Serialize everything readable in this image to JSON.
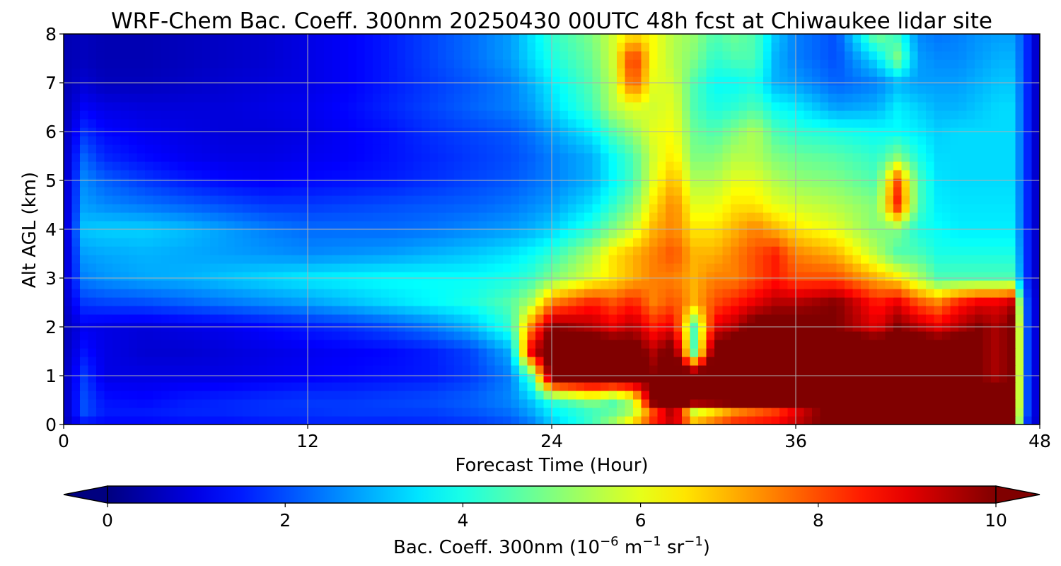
{
  "chart_data": {
    "type": "heatmap",
    "title": "WRF-Chem Bac. Coeff. 300nm  20250430 00UTC 48h fcst at Chiwaukee lidar site",
    "xlabel": "Forecast Time (Hour)",
    "ylabel": "Alt AGL (km)",
    "xlim": [
      0,
      48
    ],
    "ylim": [
      0,
      8
    ],
    "xticks": [
      0,
      12,
      24,
      36,
      48
    ],
    "yticks": [
      0,
      1,
      2,
      3,
      4,
      5,
      6,
      7,
      8
    ],
    "grid": true,
    "colormap": "jet",
    "colorbar": {
      "label_main": "Bac. Coeff. 300nm  (10",
      "label_exp1": "−6",
      "label_mid": " m",
      "label_exp2": "−1",
      "label_mid2": " sr",
      "label_exp3": "−1",
      "label_end": ")",
      "ticks": [
        0,
        2,
        4,
        6,
        8,
        10
      ],
      "range": [
        0,
        10
      ],
      "extend": "both",
      "orientation": "horizontal",
      "placement": "bottom"
    },
    "x": [
      0,
      1,
      2,
      4,
      6,
      8,
      10,
      12,
      14,
      16,
      18,
      20,
      22,
      23,
      24,
      26,
      27,
      28,
      29,
      30,
      31,
      32,
      33,
      34,
      35,
      36,
      38,
      40,
      41,
      42,
      43,
      44,
      45,
      46,
      46.7,
      47.2,
      48
    ],
    "y": [
      0,
      0.2,
      0.5,
      1,
      1.5,
      2,
      2.5,
      3,
      3.5,
      4,
      4.5,
      5,
      5.5,
      6,
      6.5,
      7,
      7.5,
      8
    ],
    "z_rows_per_altitude": [
      [
        0.5,
        1.2,
        1.2,
        1.2,
        1.3,
        1.3,
        1.4,
        1.5,
        1.5,
        1.5,
        1.6,
        1.7,
        2.0,
        2.4,
        3.2,
        4.5,
        5.5,
        7.0,
        9.0,
        9.5,
        8.5,
        9.0,
        9.5,
        9.5,
        9.5,
        9.8,
        10.5,
        11.0,
        11.0,
        11.0,
        11.0,
        10.5,
        10.5,
        10.5,
        10.0,
        2.0,
        0.4
      ],
      [
        0.5,
        2.0,
        1.5,
        1.5,
        1.6,
        1.6,
        1.7,
        1.7,
        1.8,
        1.8,
        1.8,
        2.0,
        2.3,
        2.8,
        3.5,
        4.2,
        4.8,
        5.5,
        7.5,
        9.5,
        4.5,
        5.5,
        6.5,
        7.0,
        7.5,
        8.5,
        10.5,
        11.0,
        11.0,
        11.0,
        11.0,
        10.5,
        10.5,
        10.5,
        10.0,
        2.5,
        0.4
      ],
      [
        0.5,
        2.0,
        1.4,
        1.3,
        1.5,
        1.6,
        1.7,
        1.8,
        1.8,
        1.9,
        2.0,
        2.2,
        2.6,
        3.2,
        4.2,
        5.2,
        4.5,
        5.5,
        10.5,
        11.0,
        11.0,
        11.0,
        11.0,
        11.0,
        11.0,
        11.0,
        11.0,
        10.0,
        11.0,
        11.0,
        11.0,
        11.0,
        10.5,
        10.5,
        10.5,
        2.5,
        0.4
      ],
      [
        0.5,
        1.8,
        1.0,
        1.0,
        1.0,
        1.0,
        1.1,
        1.2,
        1.3,
        1.4,
        1.5,
        1.8,
        2.5,
        4.5,
        10.5,
        11.0,
        11.0,
        11.0,
        10.0,
        11.0,
        11.0,
        11.0,
        11.0,
        11.0,
        11.0,
        11.0,
        11.0,
        11.0,
        11.0,
        11.0,
        11.0,
        11.0,
        10.0,
        9.5,
        10.5,
        2.5,
        0.4
      ],
      [
        0.5,
        1.4,
        1.0,
        0.8,
        0.8,
        0.9,
        1.0,
        1.1,
        1.2,
        1.3,
        1.5,
        1.9,
        3.0,
        9.0,
        11.0,
        11.0,
        11.0,
        10.5,
        9.5,
        10.5,
        4.5,
        10.5,
        11.0,
        11.0,
        11.0,
        11.0,
        11.0,
        11.0,
        11.0,
        11.0,
        11.0,
        11.0,
        10.0,
        9.5,
        10.5,
        2.5,
        0.4
      ],
      [
        0.5,
        1.1,
        1.0,
        0.9,
        1.0,
        1.1,
        1.3,
        1.5,
        1.7,
        2.0,
        2.4,
        3.0,
        4.2,
        7.5,
        10.0,
        9.5,
        9.0,
        9.5,
        8.5,
        9.0,
        4.5,
        9.0,
        9.5,
        10.5,
        10.5,
        10.5,
        10.0,
        9.0,
        10.0,
        9.5,
        9.0,
        9.5,
        10.0,
        9.5,
        10.5,
        2.5,
        0.4
      ],
      [
        0.6,
        1.8,
        1.9,
        2.0,
        2.2,
        2.4,
        2.6,
        2.8,
        3.1,
        3.4,
        3.7,
        4.0,
        4.6,
        5.5,
        7.5,
        8.5,
        8.0,
        8.5,
        7.5,
        8.0,
        7.0,
        8.0,
        8.5,
        9.0,
        9.5,
        9.5,
        10.0,
        8.5,
        9.0,
        8.0,
        7.5,
        8.5,
        9.0,
        9.0,
        9.5,
        2.5,
        0.4
      ],
      [
        0.6,
        2.5,
        2.7,
        2.9,
        3.0,
        3.2,
        3.4,
        3.6,
        3.7,
        3.8,
        3.8,
        3.8,
        4.0,
        4.3,
        5.0,
        6.0,
        6.5,
        7.0,
        7.5,
        7.5,
        7.0,
        7.5,
        7.5,
        8.0,
        8.5,
        8.0,
        8.0,
        7.0,
        6.5,
        5.5,
        4.5,
        4.5,
        4.5,
        4.5,
        4.5,
        2.0,
        0.4
      ],
      [
        0.5,
        2.8,
        2.9,
        3.0,
        2.9,
        2.8,
        2.7,
        2.6,
        2.7,
        2.8,
        3.0,
        3.2,
        3.5,
        3.8,
        4.2,
        5.5,
        6.5,
        7.0,
        7.5,
        8.0,
        7.0,
        7.0,
        7.5,
        8.0,
        8.5,
        7.5,
        7.0,
        5.5,
        4.5,
        4.5,
        4.0,
        4.0,
        4.0,
        4.0,
        4.0,
        2.0,
        0.4
      ],
      [
        0.5,
        3.2,
        3.3,
        3.3,
        3.1,
        2.8,
        2.5,
        2.3,
        2.3,
        2.3,
        2.4,
        2.6,
        2.8,
        3.0,
        3.3,
        4.2,
        5.0,
        5.8,
        7.0,
        7.5,
        6.5,
        6.5,
        7.0,
        7.5,
        7.0,
        6.5,
        6.0,
        5.0,
        5.0,
        4.0,
        3.8,
        3.6,
        3.6,
        3.6,
        3.6,
        2.0,
        0.4
      ],
      [
        0.5,
        2.8,
        2.6,
        2.4,
        2.2,
        2.0,
        1.8,
        1.8,
        1.9,
        2.0,
        2.1,
        2.2,
        2.4,
        2.6,
        2.8,
        3.5,
        4.2,
        5.0,
        6.5,
        7.5,
        6.0,
        6.0,
        6.5,
        6.5,
        6.0,
        5.8,
        5.5,
        5.0,
        8.5,
        4.5,
        3.6,
        3.5,
        3.5,
        3.5,
        3.5,
        2.0,
        0.4
      ],
      [
        0.5,
        2.6,
        2.2,
        1.8,
        1.5,
        1.3,
        1.2,
        1.3,
        1.4,
        1.5,
        1.7,
        1.9,
        2.1,
        2.3,
        2.5,
        3.0,
        3.7,
        4.4,
        6.0,
        7.0,
        5.5,
        5.5,
        6.0,
        6.0,
        5.5,
        5.2,
        5.0,
        4.5,
        8.0,
        4.5,
        3.5,
        3.4,
        3.4,
        3.4,
        3.4,
        2.0,
        0.4
      ],
      [
        0.5,
        2.2,
        1.6,
        1.3,
        1.1,
        1.0,
        1.0,
        1.1,
        1.2,
        1.4,
        1.6,
        1.8,
        2.0,
        2.2,
        2.5,
        3.0,
        3.8,
        4.5,
        5.8,
        6.5,
        5.0,
        5.0,
        5.5,
        5.5,
        5.0,
        4.8,
        4.6,
        4.2,
        5.0,
        4.0,
        3.4,
        3.4,
        3.4,
        3.4,
        3.4,
        2.0,
        0.4
      ],
      [
        0.5,
        1.7,
        1.3,
        1.1,
        1.0,
        0.9,
        0.9,
        1.0,
        1.2,
        1.4,
        1.7,
        1.9,
        2.1,
        2.4,
        2.8,
        3.6,
        4.5,
        5.2,
        6.0,
        6.2,
        4.8,
        4.5,
        5.0,
        5.5,
        4.5,
        4.2,
        4.0,
        3.8,
        3.8,
        3.6,
        3.3,
        3.4,
        3.4,
        3.4,
        3.4,
        2.0,
        0.4
      ],
      [
        0.5,
        1.2,
        1.0,
        0.9,
        0.9,
        0.9,
        1.0,
        1.1,
        1.3,
        1.6,
        1.9,
        2.2,
        2.5,
        2.8,
        3.4,
        4.4,
        5.5,
        6.0,
        5.8,
        6.0,
        4.5,
        4.0,
        4.2,
        4.5,
        3.8,
        3.6,
        2.8,
        3.0,
        3.6,
        3.3,
        3.0,
        3.0,
        3.2,
        3.4,
        3.4,
        2.0,
        0.4
      ],
      [
        0.5,
        0.8,
        0.6,
        0.6,
        0.7,
        0.8,
        0.9,
        1.0,
        1.2,
        1.5,
        1.8,
        2.1,
        2.5,
        3.0,
        3.6,
        4.6,
        5.6,
        8.0,
        6.0,
        5.8,
        4.5,
        3.8,
        3.8,
        4.0,
        3.0,
        2.8,
        2.2,
        2.5,
        3.0,
        2.8,
        2.8,
        2.8,
        3.0,
        3.2,
        3.2,
        2.0,
        0.4
      ],
      [
        0.5,
        0.6,
        0.5,
        0.5,
        0.6,
        0.7,
        0.8,
        1.0,
        1.2,
        1.5,
        1.9,
        2.3,
        2.8,
        3.4,
        4.0,
        4.8,
        5.8,
        8.5,
        6.2,
        5.5,
        5.0,
        4.2,
        4.5,
        4.5,
        3.0,
        2.5,
        2.0,
        3.5,
        5.0,
        2.8,
        2.6,
        2.6,
        2.8,
        3.0,
        3.0,
        2.0,
        0.4
      ],
      [
        0.5,
        0.6,
        0.5,
        0.5,
        0.6,
        0.7,
        0.8,
        1.0,
        1.2,
        1.5,
        1.9,
        2.3,
        2.8,
        3.5,
        4.2,
        5.0,
        5.8,
        6.5,
        6.2,
        5.5,
        5.2,
        4.5,
        4.8,
        4.5,
        3.2,
        2.5,
        2.0,
        5.0,
        4.2,
        2.6,
        2.4,
        2.5,
        2.7,
        2.8,
        2.8,
        2.0,
        0.4
      ]
    ]
  }
}
